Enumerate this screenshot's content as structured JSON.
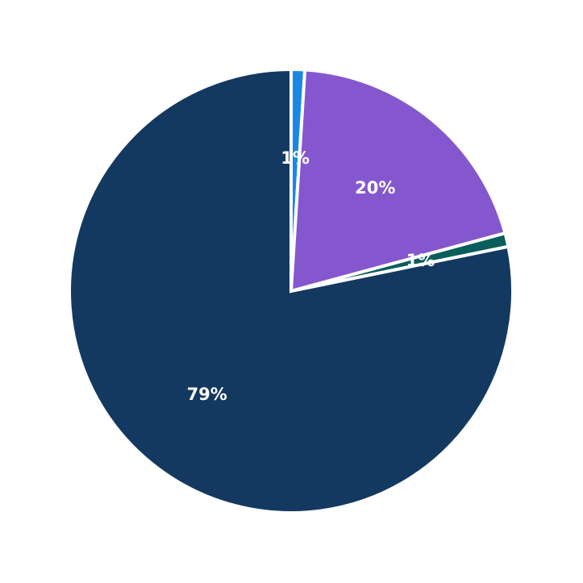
{
  "chart_data": {
    "type": "pie",
    "title": "",
    "start": "top",
    "direction": "clockwise",
    "slices": [
      {
        "label": "1%",
        "value": 1,
        "color": "#1a87e5"
      },
      {
        "label": "20%",
        "value": 20,
        "color": "#8557ce"
      },
      {
        "label": "1%",
        "value": 1,
        "color": "#0a5e5b"
      },
      {
        "label": "79%",
        "value": 79,
        "color": "#143960"
      }
    ]
  }
}
